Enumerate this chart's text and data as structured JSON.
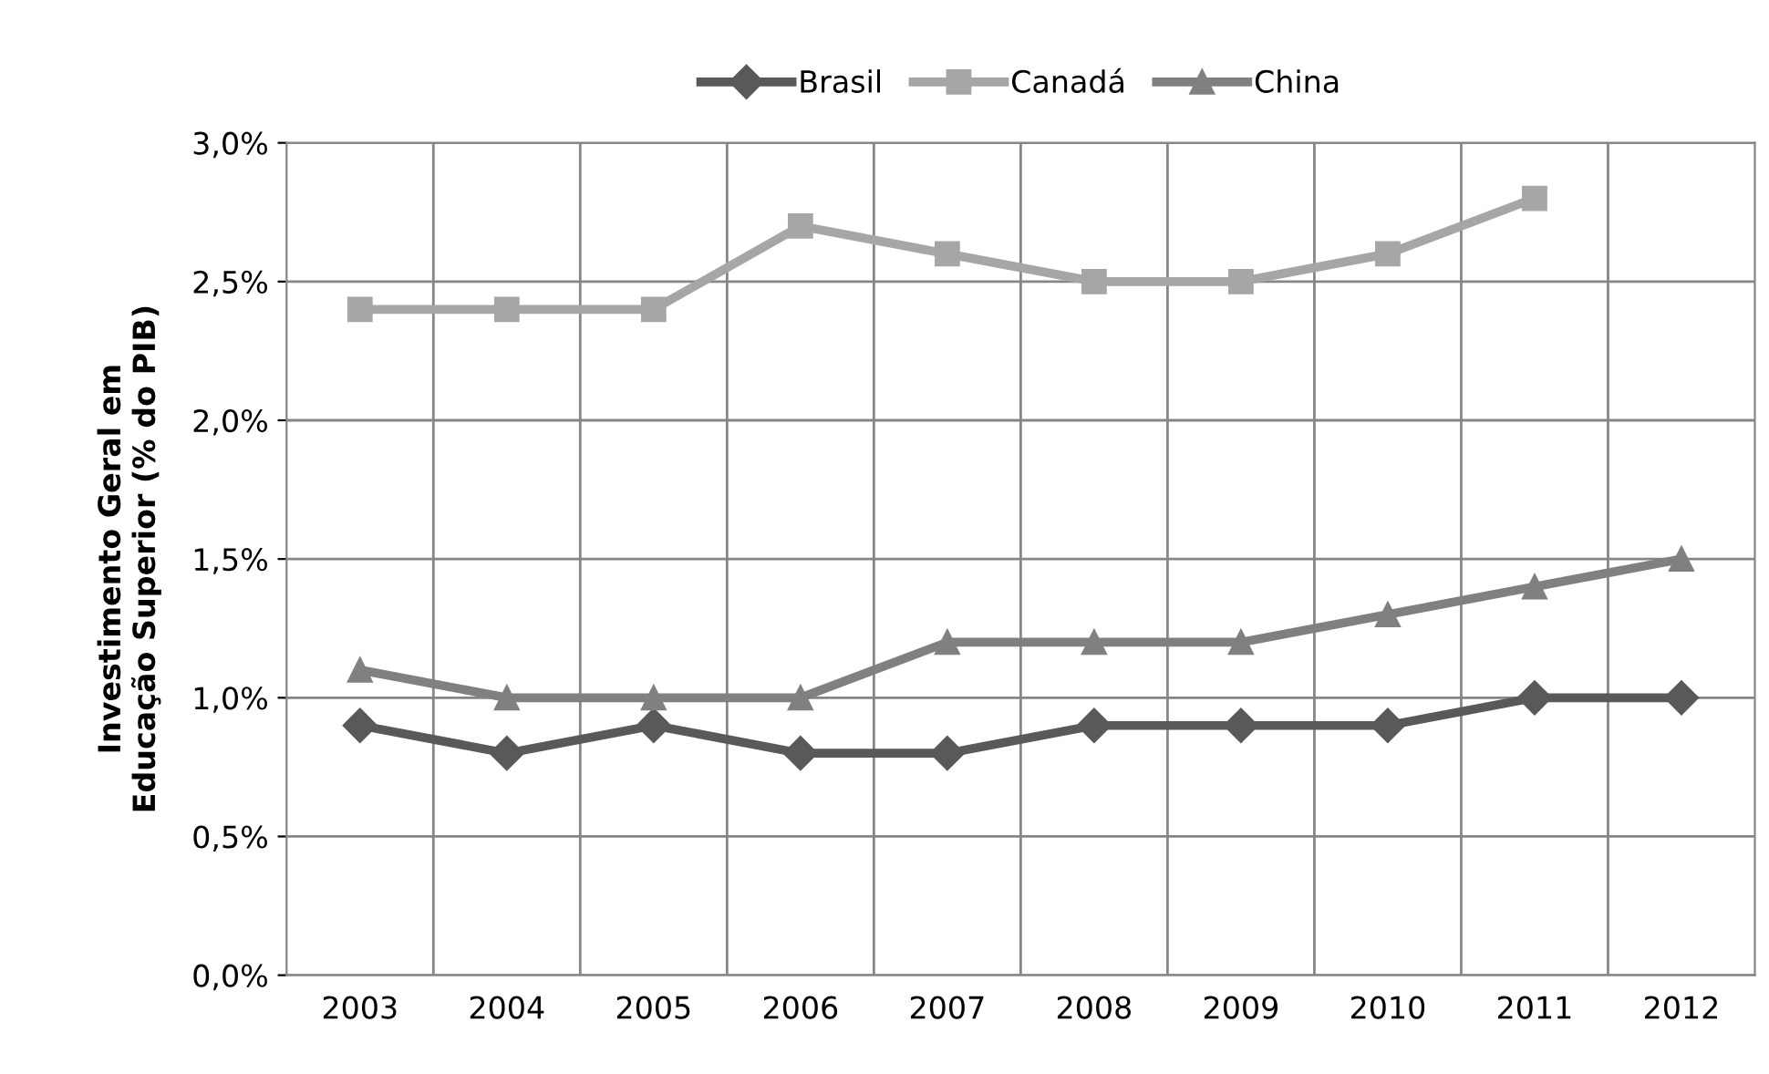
{
  "chart_data": {
    "type": "line",
    "ylabel": "Investimento Geral em\nEducação Superior (% do PIB)",
    "categories": [
      "2003",
      "2004",
      "2005",
      "2006",
      "2007",
      "2008",
      "2009",
      "2010",
      "2011",
      "2012"
    ],
    "series": [
      {
        "name": "Brasil",
        "color": "#595959",
        "marker": "diamond",
        "values": [
          0.9,
          0.8,
          0.9,
          0.8,
          0.8,
          0.9,
          0.9,
          0.9,
          1.0,
          1.0
        ]
      },
      {
        "name": "Canadá",
        "color": "#a6a6a6",
        "marker": "square",
        "values": [
          2.4,
          2.4,
          2.4,
          2.7,
          2.6,
          2.5,
          2.5,
          2.6,
          2.8,
          null
        ]
      },
      {
        "name": "China",
        "color": "#808080",
        "marker": "triangle",
        "values": [
          1.1,
          1.0,
          1.0,
          1.0,
          1.2,
          1.2,
          1.2,
          1.3,
          1.4,
          1.5
        ]
      }
    ],
    "ylim": [
      0,
      3.0
    ],
    "yticks": [
      {
        "value": 0,
        "label": "0,0%"
      },
      {
        "value": 0.5,
        "label": "0,5%"
      },
      {
        "value": 1.0,
        "label": "1,0%"
      },
      {
        "value": 1.5,
        "label": "1,5%"
      },
      {
        "value": 2.0,
        "label": "2,0%"
      },
      {
        "value": 2.5,
        "label": "2,5%"
      },
      {
        "value": 3.0,
        "label": "3,0%"
      }
    ],
    "grid": true,
    "legend": "top",
    "line_style": "solid"
  }
}
